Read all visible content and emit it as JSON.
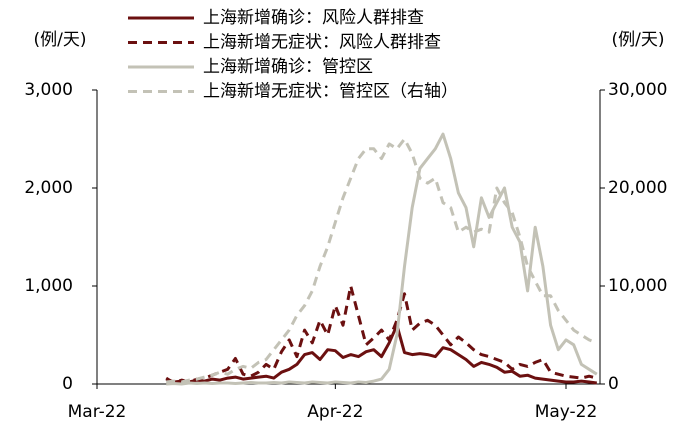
{
  "chart_data": {
    "type": "line",
    "y_label": "(例/天)",
    "y2_label": "(例/天)",
    "categories": [
      "Mar-22",
      null,
      null,
      null,
      null,
      null,
      null,
      null,
      null,
      null,
      null,
      null,
      null,
      null,
      null,
      null,
      null,
      null,
      null,
      null,
      null,
      null,
      null,
      null,
      null,
      null,
      null,
      null,
      null,
      null,
      null,
      "Apr-22",
      null,
      null,
      null,
      null,
      null,
      null,
      null,
      null,
      null,
      null,
      null,
      null,
      null,
      null,
      null,
      null,
      null,
      null,
      null,
      null,
      null,
      null,
      null,
      null,
      null,
      null,
      null,
      null,
      null,
      "May-22",
      null,
      null,
      null,
      null
    ],
    "ylim": [
      0,
      3000
    ],
    "yticks": [
      {
        "value": 0,
        "label": "0"
      },
      {
        "value": 1000,
        "label": "1,000"
      },
      {
        "value": 2000,
        "label": "2,000"
      },
      {
        "value": 3000,
        "label": "3,000"
      }
    ],
    "y2lim": [
      0,
      30000
    ],
    "y2ticks": [
      {
        "value": 0,
        "label": "0"
      },
      {
        "value": 10000,
        "label": "10,000"
      },
      {
        "value": 20000,
        "label": "20,000"
      },
      {
        "value": 30000,
        "label": "30,000"
      }
    ],
    "series": [
      {
        "name": "上海新增确诊：风险人群排查",
        "color": "#6b1010",
        "dash": false,
        "values": [
          null,
          null,
          null,
          null,
          null,
          null,
          null,
          null,
          null,
          50,
          20,
          30,
          20,
          40,
          30,
          50,
          40,
          60,
          70,
          50,
          60,
          70,
          80,
          60,
          120,
          150,
          200,
          300,
          320,
          250,
          350,
          340,
          270,
          300,
          280,
          330,
          350,
          280,
          420,
          600,
          320,
          300,
          310,
          300,
          280,
          370,
          350,
          300,
          250,
          180,
          220,
          200,
          170,
          120,
          130,
          80,
          90,
          60,
          50,
          40,
          30,
          20,
          20,
          30,
          20,
          10
        ]
      },
      {
        "name": "上海新增无症状：风险人群排查",
        "color": "#6b1010",
        "dash": true,
        "values": [
          null,
          null,
          null,
          null,
          null,
          null,
          null,
          null,
          null,
          60,
          10,
          40,
          20,
          50,
          60,
          90,
          120,
          150,
          260,
          100,
          80,
          120,
          200,
          150,
          330,
          450,
          280,
          550,
          420,
          650,
          500,
          800,
          600,
          1000,
          700,
          400,
          470,
          550,
          450,
          650,
          920,
          550,
          620,
          650,
          600,
          500,
          400,
          480,
          420,
          350,
          300,
          280,
          250,
          220,
          150,
          200,
          180,
          220,
          250,
          120,
          100,
          80,
          70,
          60,
          80,
          60
        ]
      },
      {
        "name": "上海新增确诊：管控区",
        "color": "#c3c2b6",
        "dash": false,
        "axis": "y2",
        "values": [
          null,
          null,
          null,
          null,
          null,
          null,
          null,
          null,
          null,
          0,
          50,
          0,
          100,
          50,
          100,
          50,
          100,
          100,
          50,
          100,
          150,
          100,
          100,
          150,
          100,
          200,
          150,
          100,
          200,
          150,
          100,
          200,
          150,
          100,
          200,
          150,
          300,
          500,
          1500,
          5000,
          12000,
          18000,
          22000,
          23000,
          24000,
          25500,
          23000,
          19500,
          18000,
          14000,
          19000,
          17000,
          18500,
          20000,
          16000,
          14500,
          9500,
          16000,
          12000,
          6000,
          3500,
          4500,
          4000,
          2000,
          1500,
          1000
        ]
      },
      {
        "name": "上海新增无症状：管控区（右轴）",
        "color": "#c3c2b6",
        "dash": true,
        "axis": "y2",
        "values": [
          null,
          null,
          null,
          null,
          null,
          null,
          null,
          null,
          null,
          200,
          300,
          200,
          400,
          500,
          700,
          900,
          1200,
          1000,
          1500,
          1800,
          1600,
          2200,
          2500,
          3500,
          4500,
          5500,
          7000,
          8000,
          9500,
          12000,
          14000,
          16500,
          19000,
          21000,
          23000,
          24000,
          24000,
          23000,
          24500,
          24000,
          25000,
          23500,
          21000,
          20500,
          21000,
          18500,
          18000,
          15500,
          16000,
          15500,
          15800,
          15500,
          20000,
          18500,
          17500,
          15000,
          12000,
          10500,
          9000,
          9000,
          7500,
          6500,
          5500,
          5000,
          4500,
          4200
        ]
      }
    ]
  }
}
